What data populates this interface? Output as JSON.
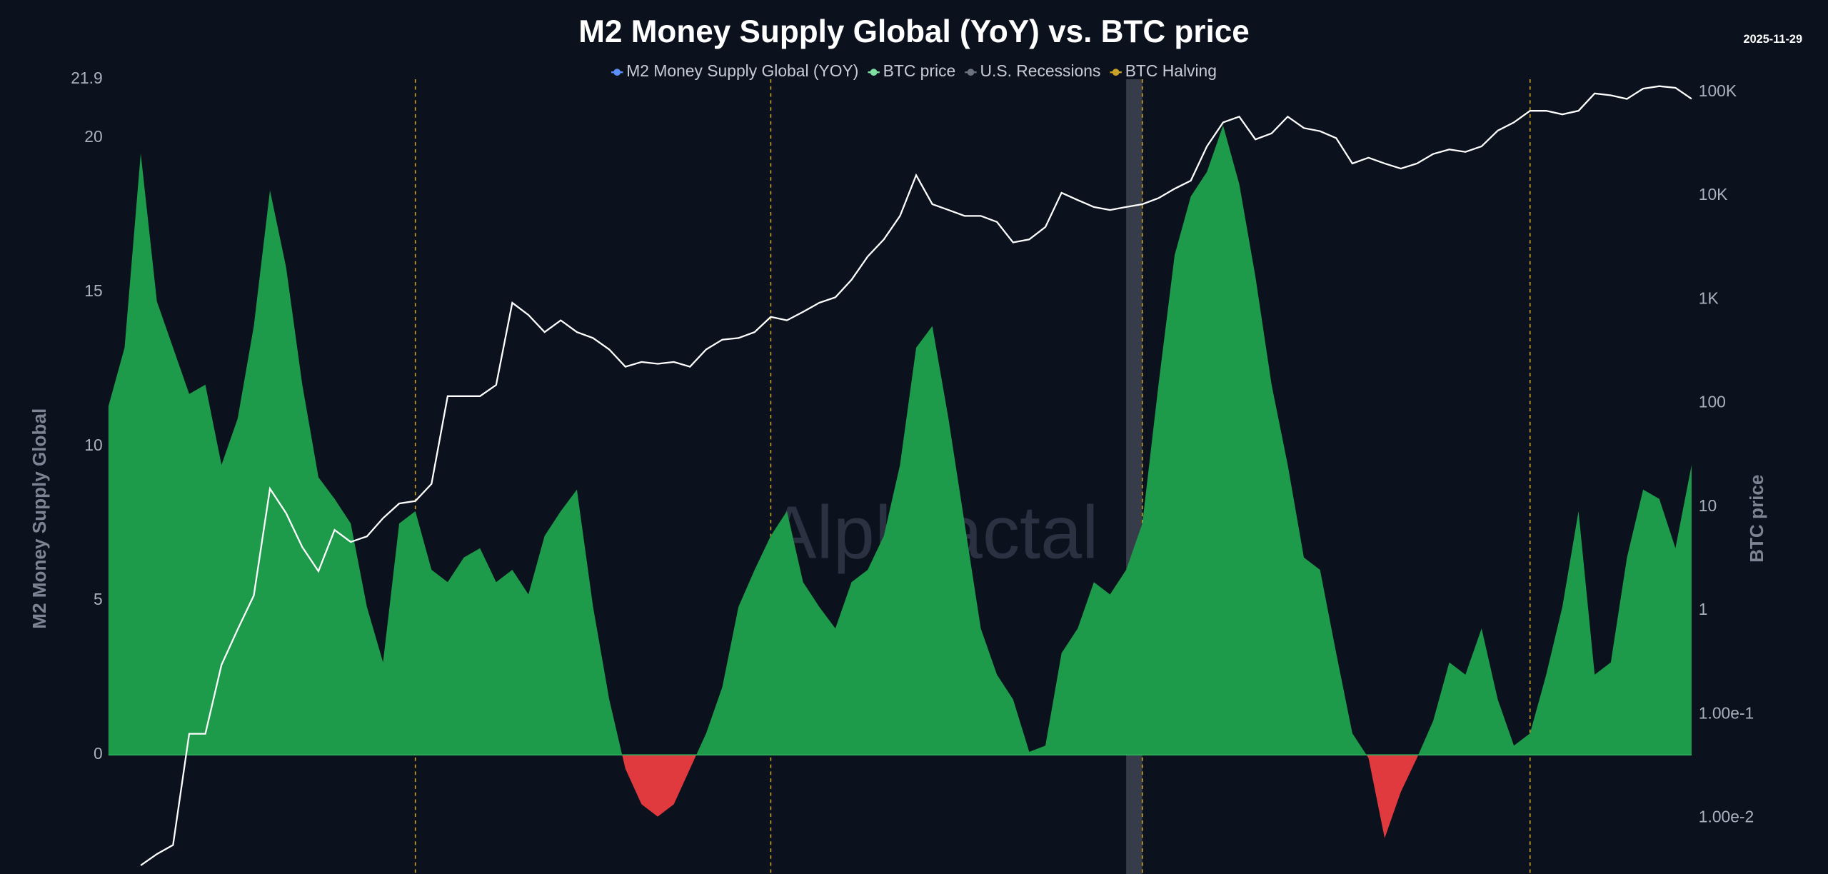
{
  "chart_data": {
    "type": "area-line",
    "title": "M2 Money Supply Global (YoY) vs. BTC price",
    "date": "2025-11-29",
    "watermark": "Alphractal",
    "y_label": "M2 Money Supply Global",
    "y2_label": "BTC price",
    "ylim": [
      -3.86,
      21.9
    ],
    "yticks": [
      0,
      5,
      10,
      15,
      20,
      21.9
    ],
    "y2lim": [
      0.00289,
      133000
    ],
    "y2log": true,
    "y2ticks": [
      {
        "value": 0.01,
        "label": "1.00e-2"
      },
      {
        "value": 0.1,
        "label": "1.00e-1"
      },
      1,
      10,
      100,
      {
        "value": 1000,
        "label": "1K"
      },
      {
        "value": 10000,
        "label": "10K"
      },
      {
        "value": 100000,
        "label": "100K"
      }
    ],
    "series": [
      {
        "name": "M2 Money Supply Global (YOY)",
        "color": "#5b8ff9",
        "positive_color": "#1e9a4b",
        "negative_color": "#e0393e",
        "values": [
          11.3,
          13.2,
          19.5,
          14.7,
          13.2,
          11.7,
          12.0,
          9.4,
          10.9,
          13.9,
          18.3,
          15.8,
          12.0,
          9.0,
          8.3,
          7.5,
          4.8,
          3.0,
          7.5,
          7.9,
          6.0,
          5.6,
          6.4,
          6.7,
          5.6,
          6.0,
          5.2,
          7.1,
          7.9,
          8.6,
          4.8,
          1.8,
          -0.45,
          -1.6,
          -2.0,
          -1.6,
          -0.45,
          0.7,
          2.2,
          4.8,
          6.0,
          7.1,
          7.9,
          5.6,
          4.8,
          4.1,
          5.6,
          6.0,
          7.1,
          9.4,
          13.2,
          13.9,
          10.9,
          7.5,
          4.1,
          2.6,
          1.8,
          0.1,
          0.3,
          3.3,
          4.1,
          5.6,
          5.2,
          6.0,
          7.5,
          12.0,
          16.2,
          18.1,
          18.9,
          20.4,
          18.5,
          15.5,
          12.0,
          9.4,
          6.4,
          6.0,
          3.3,
          0.7,
          -0.1,
          -2.7,
          -1.2,
          -0.1,
          1.1,
          3.0,
          2.6,
          4.1,
          1.8,
          0.3,
          0.7,
          2.6,
          4.8,
          7.9,
          2.6,
          3.0,
          6.4,
          8.6,
          8.3,
          6.7,
          9.4
        ]
      },
      {
        "name": "BTC price",
        "color": "#7ee0a1",
        "line_color": "#ffffff",
        "axis": "y2",
        "values": [
          null,
          null,
          0.0035,
          0.0045,
          0.0055,
          0.065,
          0.065,
          0.3,
          0.66,
          1.4,
          15,
          8.7,
          4.1,
          2.4,
          6,
          4.6,
          5.2,
          7.8,
          10.8,
          11.4,
          16.7,
          117,
          117,
          117,
          150,
          930,
          710,
          485,
          630,
          485,
          425,
          330,
          225,
          250,
          240,
          250,
          225,
          330,
          410,
          425,
          485,
          680,
          630,
          760,
          930,
          1050,
          1550,
          2600,
          3800,
          6400,
          15800,
          8300,
          7300,
          6400,
          6400,
          5600,
          3550,
          3800,
          5000,
          10700,
          9100,
          7800,
          7300,
          7800,
          8300,
          9500,
          11700,
          14000,
          30000,
          51000,
          58000,
          35000,
          40000,
          58000,
          45000,
          42000,
          36000,
          20500,
          23300,
          20500,
          18300,
          20500,
          25300,
          28000,
          26500,
          30000,
          42500,
          51000,
          66000,
          66000,
          61000,
          66000,
          97000,
          93000,
          86000,
          108000,
          114000,
          110000,
          86000
        ]
      }
    ],
    "events": [
      {
        "name": "U.S. Recessions",
        "color": "#6b7280",
        "ranges": [
          [
            63,
            64
          ]
        ]
      },
      {
        "name": "BTC Halving",
        "color": "#c9a227",
        "at": [
          19,
          41,
          64,
          88
        ]
      }
    ]
  }
}
